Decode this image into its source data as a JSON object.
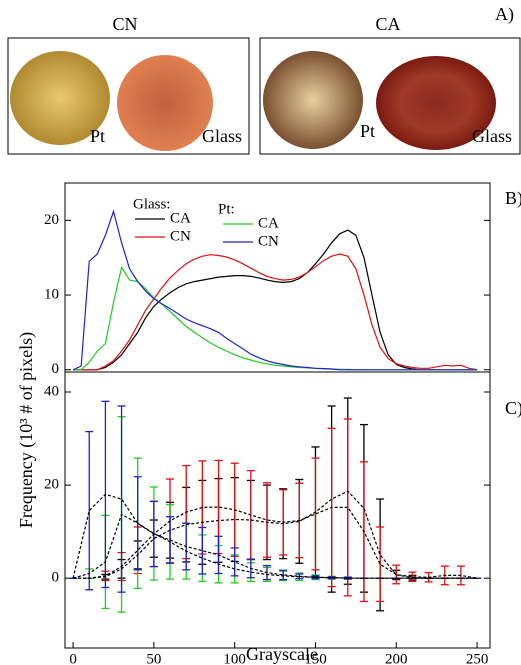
{
  "panel_a": {
    "label": "A)",
    "groups": [
      {
        "title": "CN",
        "samples": [
          "Pt",
          "Glass"
        ]
      },
      {
        "title": "CA",
        "samples": [
          "Pt",
          "Glass"
        ]
      }
    ]
  },
  "chart_data": [
    {
      "type": "line",
      "panel_label": "B)",
      "ylabel": "Frequency (10³ # of pixels)",
      "x": [
        0,
        5,
        10,
        15,
        20,
        25,
        30,
        35,
        40,
        45,
        50,
        55,
        60,
        65,
        70,
        75,
        80,
        85,
        90,
        95,
        100,
        105,
        110,
        115,
        120,
        125,
        130,
        135,
        140,
        145,
        150,
        155,
        160,
        165,
        170,
        175,
        180,
        185,
        190,
        195,
        200,
        205,
        210,
        215,
        220,
        225,
        230,
        235,
        240,
        245,
        250
      ],
      "xlim": [
        -5,
        258
      ],
      "ylim": [
        -0.3,
        25
      ],
      "yticks": [
        0,
        10,
        20
      ],
      "legend_groups": [
        {
          "title": "Glass:",
          "series": [
            0,
            1
          ]
        },
        {
          "title": "Pt:",
          "series": [
            2,
            3
          ]
        }
      ],
      "series": [
        {
          "name": "CA",
          "color": "#000000",
          "values": [
            0,
            0,
            0,
            0,
            0.3,
            1,
            2,
            3.5,
            5,
            7,
            8.5,
            9.5,
            10.3,
            11,
            11.5,
            11.8,
            12,
            12.2,
            12.4,
            12.5,
            12.6,
            12.6,
            12.5,
            12.3,
            12,
            11.8,
            11.7,
            11.8,
            12.2,
            13,
            14.2,
            15.5,
            17,
            18.2,
            18.7,
            18,
            15,
            10,
            5,
            2,
            0.7,
            0.3,
            0.1,
            0,
            0,
            0,
            0,
            0,
            0,
            0,
            0
          ]
        },
        {
          "name": "CN",
          "color": "#e01010",
          "values": [
            0,
            0,
            0,
            0,
            0.5,
            1.2,
            2.5,
            4,
            6,
            8,
            9.5,
            11,
            12.3,
            13.3,
            14.2,
            14.8,
            15.2,
            15.4,
            15.3,
            15.1,
            14.7,
            14.2,
            13.6,
            13,
            12.5,
            12.2,
            12,
            12.1,
            12.4,
            13,
            13.8,
            14.6,
            15.2,
            15.5,
            15.2,
            13.5,
            10,
            6,
            3,
            1.5,
            0.8,
            0.5,
            0.3,
            0.2,
            0.2,
            0.4,
            0.6,
            0.5,
            0.6,
            0.2,
            0
          ]
        },
        {
          "name": "CA",
          "color": "#22cc22",
          "values": [
            0,
            0,
            1,
            2.5,
            3.5,
            9,
            13.7,
            12,
            11.8,
            10.8,
            9.6,
            8.8,
            7.8,
            6.8,
            5.8,
            5,
            4.3,
            3.6,
            3,
            2.5,
            2,
            1.6,
            1.3,
            1,
            0.8,
            0.6,
            0.5,
            0.4,
            0.3,
            0.25,
            0.2,
            0.15,
            0.1,
            0.05,
            0.05,
            0,
            0,
            0,
            0,
            0,
            0,
            0,
            0,
            0,
            0,
            0,
            0,
            0,
            0,
            0,
            0
          ]
        },
        {
          "name": "CN",
          "color": "#2222cc",
          "values": [
            0,
            0.5,
            14.5,
            15.5,
            18,
            21.2,
            17,
            13.5,
            11.8,
            10.5,
            9.5,
            8.8,
            8.2,
            7.5,
            6.8,
            6.3,
            5.9,
            5.5,
            5,
            4.2,
            3.5,
            2.8,
            2.1,
            1.6,
            1.2,
            0.9,
            0.7,
            0.5,
            0.4,
            0.3,
            0.2,
            0.15,
            0.1,
            0,
            0,
            0,
            0,
            0,
            0,
            0,
            0,
            0,
            0,
            0,
            0,
            0,
            0,
            0,
            0,
            0,
            0
          ]
        }
      ]
    },
    {
      "type": "errorbar",
      "panel_label": "C)",
      "xlabel": "Grayscale",
      "x": [
        0,
        10,
        20,
        30,
        40,
        50,
        60,
        70,
        80,
        90,
        100,
        110,
        120,
        130,
        140,
        150,
        160,
        170,
        180,
        190,
        200,
        210,
        220,
        230,
        240,
        250
      ],
      "xlim": [
        -5,
        258
      ],
      "ylim": [
        -15,
        44.3
      ],
      "xticks": [
        0,
        50,
        100,
        150,
        200,
        250
      ],
      "yticks": [
        0,
        20,
        40
      ],
      "series": [
        {
          "name": "CA",
          "color": "#000000",
          "values": [
            0,
            0,
            0.3,
            2,
            5,
            8.5,
            10.3,
            11.5,
            12,
            12.4,
            12.6,
            12.5,
            12,
            11.7,
            12.2,
            14.2,
            17,
            18.7,
            15,
            5,
            0.7,
            0.1,
            0,
            0,
            0,
            0
          ],
          "errors": [
            0,
            0,
            0.5,
            2,
            3,
            4,
            6,
            8,
            9,
            9,
            9,
            8.5,
            8,
            7.5,
            9,
            14,
            20,
            20,
            18,
            12,
            1,
            0.5,
            0,
            0,
            0,
            0
          ]
        },
        {
          "name": "CN",
          "color": "#e01010",
          "values": [
            0,
            0,
            0.5,
            2.5,
            6,
            9.5,
            12.3,
            14.2,
            15.2,
            15.3,
            14.7,
            13.6,
            12.5,
            12,
            12.4,
            13.8,
            15.2,
            15.2,
            10,
            3,
            0.8,
            0.3,
            0.2,
            0.6,
            0.6,
            0
          ],
          "errors": [
            0,
            0,
            1,
            3,
            5,
            7,
            9,
            10,
            10,
            10,
            10,
            9.5,
            8,
            7,
            8,
            12,
            17,
            19,
            15,
            8,
            2,
            1,
            1,
            2,
            2,
            0
          ]
        },
        {
          "name": "CA",
          "color": "#22cc22",
          "values": [
            0,
            1,
            3.5,
            13.7,
            11.8,
            9.6,
            7.8,
            5.8,
            4.3,
            3,
            2,
            1.3,
            0.8,
            0.5,
            0.3,
            0.2,
            0.1,
            0.05,
            0,
            0,
            0,
            0,
            0,
            0,
            0,
            0
          ],
          "errors": [
            0,
            1,
            10,
            21,
            14,
            10,
            8,
            6,
            5,
            4,
            3,
            2,
            1.5,
            1,
            0.8,
            0.5,
            0.3,
            0.2,
            0,
            0,
            0,
            0,
            0,
            0,
            0,
            0
          ]
        },
        {
          "name": "CN",
          "color": "#2222cc",
          "values": [
            0,
            14.5,
            18,
            17,
            11.8,
            9.5,
            8.2,
            6.8,
            5.9,
            5,
            3.5,
            2.1,
            1.2,
            0.7,
            0.4,
            0.2,
            0.1,
            0,
            0,
            0,
            0,
            0,
            0,
            0,
            0,
            0
          ],
          "errors": [
            0,
            17,
            20,
            20,
            10,
            7,
            5,
            5,
            5,
            4,
            3,
            2,
            1.5,
            1,
            0.5,
            0.3,
            0.2,
            0.2,
            0,
            0,
            0,
            0,
            0,
            0,
            0,
            0
          ]
        }
      ]
    }
  ]
}
